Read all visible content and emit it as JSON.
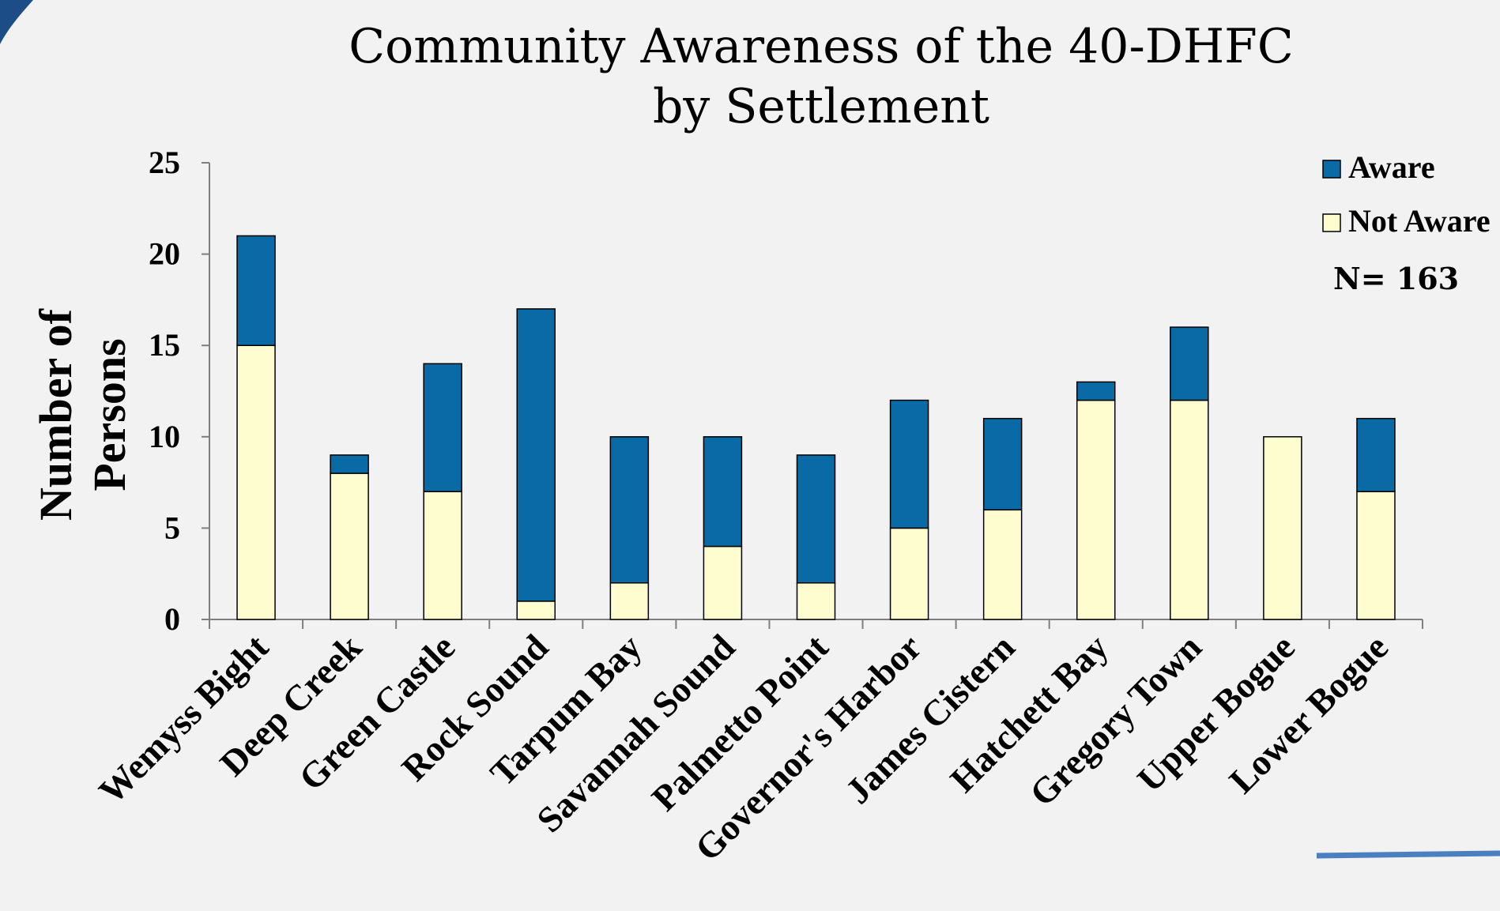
{
  "colors": {
    "aware": "#0a6aa6",
    "not_aware": "#fdfdcf",
    "background": "#f2f2f2",
    "accent_corner": "#1d4d86",
    "accent_line": "#4a7fc0"
  },
  "chart_data": {
    "type": "bar",
    "stacked": true,
    "title": [
      "Community Awareness of the 40-DHFC",
      "by Settlement"
    ],
    "ylabel": [
      "Number of",
      "Persons"
    ],
    "xlabel": "",
    "ylim": [
      0,
      25
    ],
    "yticks": [
      0,
      5,
      10,
      15,
      20,
      25
    ],
    "legend_position": "top-right",
    "note": "N= 163",
    "categories": [
      "Wemyss Bight",
      "Deep Creek",
      "Green Castle",
      "Rock Sound",
      "Tarpum Bay",
      "Savannah Sound",
      "Palmetto Point",
      "Governor's Harbor",
      "James Cistern",
      "Hatchett Bay",
      "Gregory Town",
      "Upper Bogue",
      "Lower Bogue"
    ],
    "series": [
      {
        "name": "Not Aware",
        "values": [
          15,
          8,
          7,
          1,
          2,
          4,
          2,
          5,
          6,
          12,
          12,
          10,
          7
        ]
      },
      {
        "name": "Aware",
        "values": [
          6,
          1,
          7,
          16,
          8,
          6,
          7,
          7,
          5,
          1,
          4,
          0,
          4
        ]
      }
    ]
  }
}
